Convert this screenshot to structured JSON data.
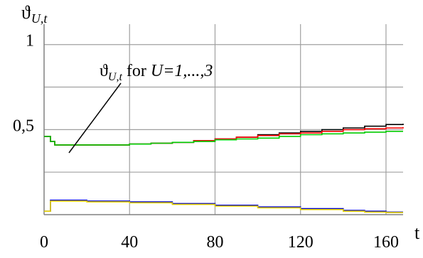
{
  "chart_data": {
    "type": "line",
    "title": "",
    "ylabel": {
      "main": "ϑ",
      "sub": "U,t"
    },
    "xlabel": "t",
    "xlim": [
      0,
      168
    ],
    "ylim": [
      0,
      1.12
    ],
    "grid": true,
    "x_ticks": [
      {
        "value": 0,
        "label": "0"
      },
      {
        "value": 40,
        "label": "40"
      },
      {
        "value": 80,
        "label": "80"
      },
      {
        "value": 120,
        "label": "120"
      },
      {
        "value": 160,
        "label": "160"
      }
    ],
    "y_ticks": [
      {
        "value": 0.5,
        "label": "0,5"
      },
      {
        "value": 1,
        "label": "1"
      }
    ],
    "y_grid": [
      0.25,
      0.5,
      0.75,
      1.0
    ],
    "annotation": {
      "theta": "ϑ",
      "sub": "U,t",
      "text_for": " for ",
      "text_range": "U=1,...,3"
    },
    "series": [
      {
        "color": "#000000",
        "x": [
          0,
          3,
          5,
          10,
          20,
          30,
          40,
          50,
          60,
          70,
          80,
          90,
          100,
          110,
          120,
          130,
          140,
          150,
          160,
          168
        ],
        "y": [
          0.46,
          0.43,
          0.41,
          0.41,
          0.41,
          0.41,
          0.415,
          0.42,
          0.425,
          0.435,
          0.445,
          0.455,
          0.47,
          0.48,
          0.49,
          0.5,
          0.51,
          0.52,
          0.53,
          0.535
        ]
      },
      {
        "color": "#ff0000",
        "x": [
          0,
          3,
          5,
          10,
          20,
          30,
          40,
          50,
          60,
          70,
          80,
          90,
          100,
          110,
          120,
          130,
          140,
          150,
          160,
          168
        ],
        "y": [
          0.46,
          0.43,
          0.41,
          0.41,
          0.41,
          0.41,
          0.415,
          0.42,
          0.425,
          0.435,
          0.445,
          0.455,
          0.465,
          0.475,
          0.48,
          0.49,
          0.5,
          0.505,
          0.51,
          0.515
        ]
      },
      {
        "color": "#00cc00",
        "x": [
          0,
          3,
          5,
          10,
          20,
          30,
          40,
          50,
          60,
          70,
          80,
          90,
          100,
          110,
          120,
          130,
          140,
          150,
          160,
          168
        ],
        "y": [
          0.46,
          0.43,
          0.41,
          0.41,
          0.41,
          0.41,
          0.415,
          0.42,
          0.425,
          0.43,
          0.44,
          0.445,
          0.45,
          0.46,
          0.47,
          0.475,
          0.48,
          0.485,
          0.49,
          0.49
        ]
      },
      {
        "color": "#0000cc",
        "x": [
          0,
          2,
          3,
          10,
          20,
          40,
          60,
          80,
          100,
          120,
          140,
          150,
          160,
          168
        ],
        "y": [
          0.02,
          0.02,
          0.085,
          0.085,
          0.08,
          0.075,
          0.065,
          0.055,
          0.045,
          0.035,
          0.025,
          0.02,
          0.015,
          0.015
        ]
      },
      {
        "color": "#e6d200",
        "x": [
          0,
          2,
          3,
          10,
          20,
          40,
          60,
          80,
          100,
          120,
          140,
          150,
          160,
          168
        ],
        "y": [
          0.02,
          0.02,
          0.08,
          0.08,
          0.075,
          0.07,
          0.06,
          0.05,
          0.04,
          0.03,
          0.02,
          0.015,
          0.012,
          0.012
        ]
      }
    ]
  }
}
